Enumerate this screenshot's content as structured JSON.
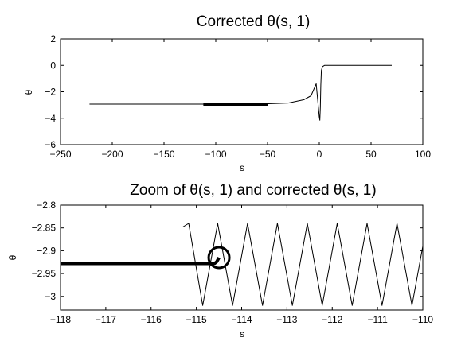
{
  "chart_data": [
    {
      "type": "line",
      "title": "Corrected θ(s, 1)",
      "xlabel": "s",
      "ylabel": "θ",
      "xlim": [
        -250,
        100
      ],
      "ylim": [
        -6,
        2
      ],
      "xticks": [
        -250,
        -200,
        -150,
        -100,
        -50,
        0,
        50,
        100
      ],
      "xtick_labels": [
        "−250",
        "−200",
        "−150",
        "−100",
        "−50",
        "0",
        "50",
        "100"
      ],
      "yticks": [
        2,
        0,
        -2,
        -4,
        -6
      ],
      "ytick_labels": [
        "2",
        "0",
        "−2",
        "−4",
        "−6"
      ],
      "grid": false,
      "series": [
        {
          "style": "thin",
          "x": [
            -222,
            -112,
            -60,
            -30,
            -15,
            -8,
            -3,
            0,
            0.5,
            1,
            1.5,
            2,
            3,
            5,
            70
          ],
          "y": [
            -2.93,
            -2.93,
            -2.93,
            -2.85,
            -2.6,
            -2.3,
            -1.4,
            -3.9,
            -4.15,
            -3.2,
            -1.5,
            -0.4,
            -0.1,
            0,
            0
          ]
        },
        {
          "style": "thick",
          "x": [
            -112,
            -50
          ],
          "y": [
            -2.93,
            -2.93
          ]
        }
      ]
    },
    {
      "type": "line",
      "title": "Zoom of θ(s, 1) and corrected θ(s, 1)",
      "xlabel": "s",
      "ylabel": "θ",
      "xlim": [
        -118,
        -110
      ],
      "ylim": [
        -3.03,
        -2.8
      ],
      "xticks": [
        -118,
        -117,
        -116,
        -115,
        -114,
        -113,
        -112,
        -111,
        -110
      ],
      "xtick_labels": [
        "−118",
        "−117",
        "−116",
        "−115",
        "−114",
        "−113",
        "−112",
        "−111",
        "−110"
      ],
      "yticks": [
        -2.8,
        -2.85,
        -2.9,
        -2.95,
        -3
      ],
      "ytick_labels": [
        "−2.8",
        "−2.85",
        "−2.9",
        "−2.95",
        "−3"
      ],
      "grid": false,
      "series": [
        {
          "style": "thin",
          "x": [
            -115.3,
            -115.17,
            -114.86,
            -114.53,
            -114.2,
            -113.87,
            -113.54,
            -113.21,
            -112.88,
            -112.55,
            -112.22,
            -111.89,
            -111.56,
            -111.23,
            -110.9,
            -110.57,
            -110.24,
            -110.0
          ],
          "y": [
            -2.848,
            -2.84,
            -3.02,
            -2.84,
            -3.02,
            -2.84,
            -3.02,
            -2.84,
            -3.02,
            -2.84,
            -3.02,
            -2.84,
            -3.02,
            -2.84,
            -3.02,
            -2.84,
            -3.02,
            -2.89
          ]
        },
        {
          "style": "thick",
          "x": [
            -118,
            -114.6,
            -114.55,
            -114.5
          ],
          "y": [
            -2.928,
            -2.928,
            -2.924,
            -2.915
          ]
        }
      ],
      "annotation": {
        "shape": "circle",
        "x": -114.5,
        "y": -2.915
      }
    }
  ]
}
